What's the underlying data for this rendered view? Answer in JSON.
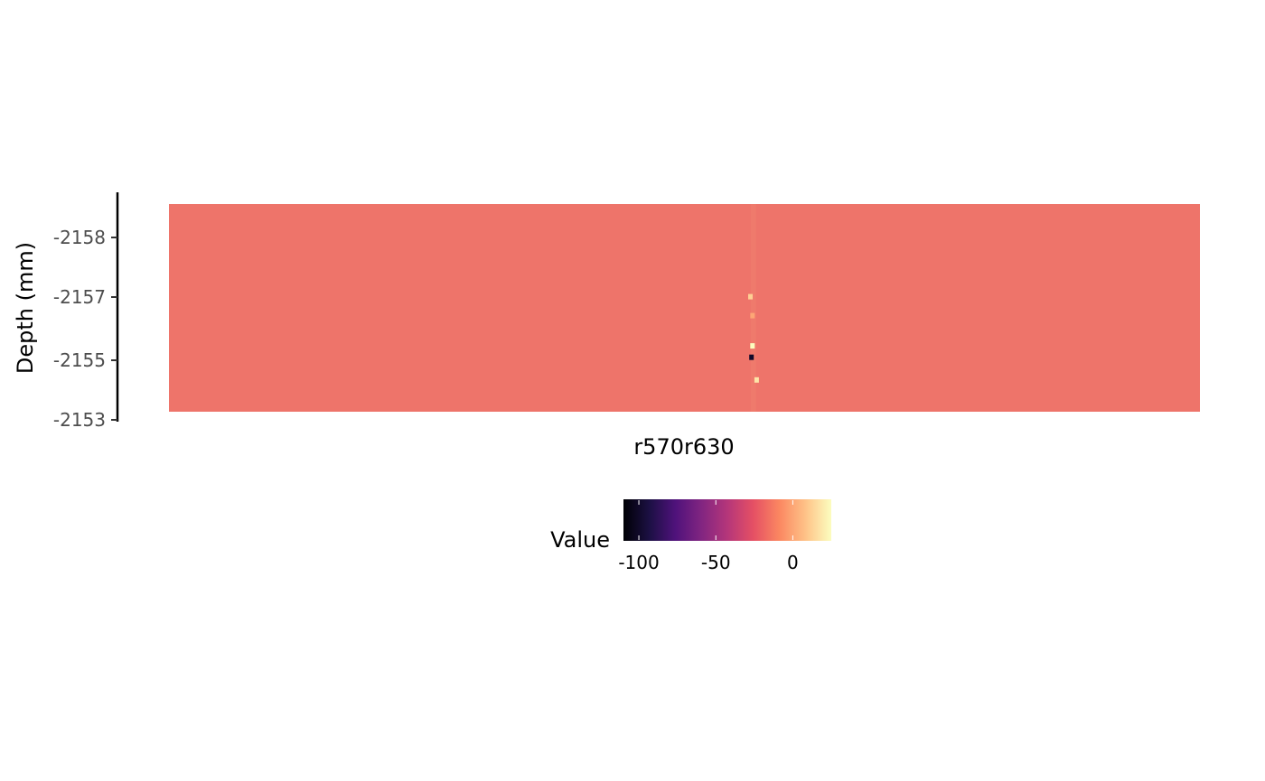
{
  "chart_data": {
    "type": "heatmap",
    "title": "",
    "xlabel": "r570r630",
    "ylabel": "Depth (mm)",
    "y_ticks": [
      "-2158",
      "-2157",
      "-2155",
      "-2153"
    ],
    "y_tick_values": [
      -2158,
      -2157,
      -2155,
      -2153
    ],
    "ylim": [
      -2158.55,
      -2153.06
    ],
    "x_categories": [
      "r570r630"
    ],
    "dominant_value": 5,
    "dominant_color": "#ee746a",
    "anomalies": [
      {
        "x_frac": 0.566,
        "depth": -2154.8,
        "value": 40
      },
      {
        "x_frac": 0.565,
        "depth": -2154.5,
        "value": -100
      },
      {
        "x_frac": 0.57,
        "depth": -2153.9,
        "value": 18
      },
      {
        "x_frac": 0.566,
        "depth": -2155.6,
        "value": 0
      },
      {
        "x_frac": 0.564,
        "depth": -2156.1,
        "value": 12
      }
    ],
    "legend": {
      "title": "Value",
      "position": "bottom",
      "min": -110,
      "max": 25,
      "ticks": [
        "-100",
        "-50",
        "0"
      ],
      "tick_values": [
        -100,
        -50,
        0
      ],
      "palette": [
        "#000004",
        "#1c1044",
        "#4f127b",
        "#812581",
        "#b5367a",
        "#e55064",
        "#fb8761",
        "#fec287",
        "#fcfdbf"
      ]
    },
    "grid": false
  }
}
